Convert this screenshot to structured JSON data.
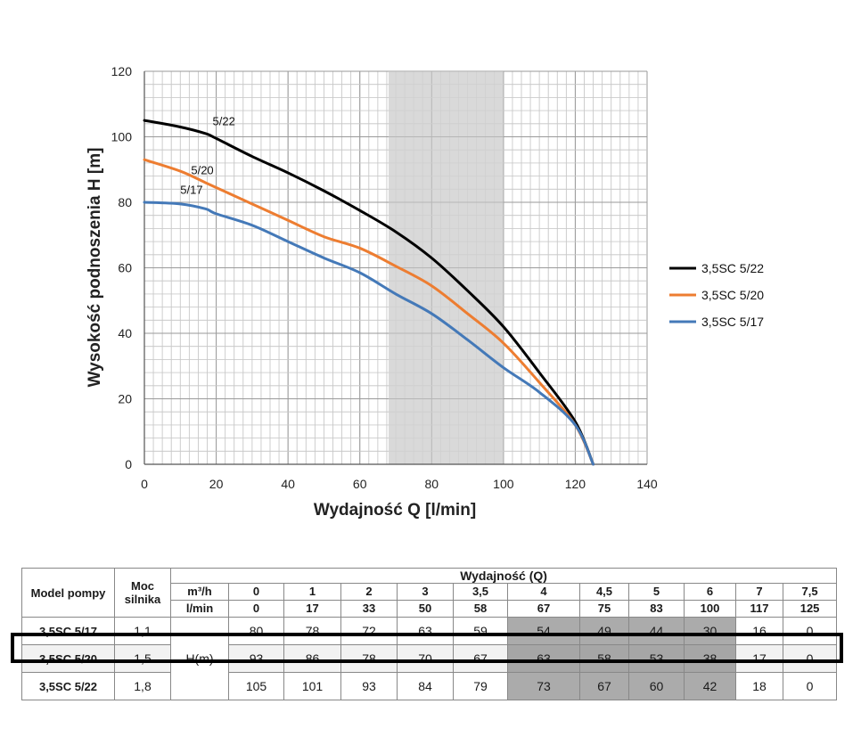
{
  "chart_data": {
    "type": "line",
    "xlabel": "Wydajność Q [l/min]",
    "ylabel": "Wysokość podnoszenia H [m]",
    "xlim": [
      0,
      140
    ],
    "ylim": [
      0,
      120
    ],
    "x_ticks": [
      0,
      20,
      40,
      60,
      80,
      100,
      120,
      140
    ],
    "y_ticks": [
      0,
      20,
      40,
      60,
      80,
      100,
      120
    ],
    "grid": true,
    "shaded_region_x": [
      68,
      100
    ],
    "legend_position": "right",
    "series": [
      {
        "name": "3,5SC 5/22",
        "curve_label": "5/22",
        "color": "#000000",
        "x": [
          0,
          10,
          17,
          20,
          30,
          40,
          50,
          60,
          70,
          80,
          90,
          100,
          110,
          120,
          125
        ],
        "y": [
          105,
          103,
          101,
          99.5,
          94,
          89,
          83.5,
          77.5,
          71,
          63,
          53,
          42,
          28,
          13,
          0
        ]
      },
      {
        "name": "3,5SC 5/20",
        "curve_label": "5/20",
        "color": "#ed7d31",
        "x": [
          0,
          10,
          17,
          20,
          30,
          40,
          50,
          60,
          70,
          80,
          90,
          100,
          110,
          120,
          125
        ],
        "y": [
          93,
          89.5,
          86,
          84.5,
          79.5,
          74.5,
          69.5,
          66,
          60.5,
          54.5,
          46,
          37,
          25,
          12,
          0
        ]
      },
      {
        "name": "3,5SC 5/17",
        "curve_label": "5/17",
        "color": "#4479b8",
        "x": [
          0,
          10,
          17,
          20,
          30,
          40,
          50,
          60,
          70,
          80,
          90,
          100,
          110,
          120,
          125
        ],
        "y": [
          80,
          79.5,
          78,
          76.5,
          73,
          68,
          63,
          58.5,
          52,
          46,
          38,
          29.5,
          22,
          12,
          0
        ]
      }
    ]
  },
  "table": {
    "col_model": "Model pompy",
    "col_power": "Moc silnika",
    "col_flow_title": "Wydajność (Q)",
    "unit_m3h": "m³/h",
    "unit_lmin": "l/min",
    "m3h": [
      "0",
      "1",
      "2",
      "3",
      "3,5",
      "4",
      "4,5",
      "5",
      "6",
      "7",
      "7,5"
    ],
    "lmin": [
      "0",
      "17",
      "33",
      "50",
      "58",
      "67",
      "75",
      "83",
      "100",
      "117",
      "125"
    ],
    "shaded_columns": [
      5,
      6,
      7,
      8
    ],
    "h_label": "H(m)",
    "rows": [
      {
        "model": "3,5SC 5/17",
        "power": "1,1",
        "values": [
          "80",
          "78",
          "72",
          "63",
          "59",
          "54",
          "49",
          "44",
          "30",
          "16",
          "0"
        ]
      },
      {
        "model": "3,5SC 5/20",
        "power": "1,5",
        "values": [
          "93",
          "86",
          "78",
          "70",
          "67",
          "63",
          "58",
          "53",
          "38",
          "17",
          "0"
        ]
      },
      {
        "model": "3,5SC 5/22",
        "power": "1,8",
        "values": [
          "105",
          "101",
          "93",
          "84",
          "79",
          "73",
          "67",
          "60",
          "42",
          "18",
          "0"
        ]
      }
    ]
  }
}
